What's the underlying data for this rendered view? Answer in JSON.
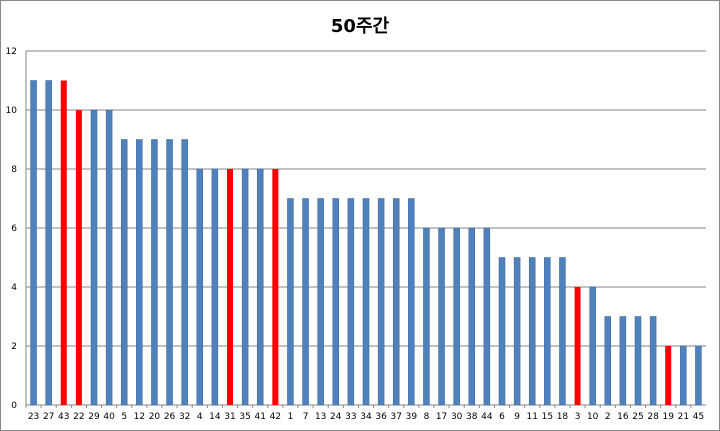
{
  "chart_data": {
    "type": "bar",
    "title": "50주간",
    "xlabel": "",
    "ylabel": "",
    "ylim": [
      0,
      12
    ],
    "yticks": [
      0,
      2,
      4,
      6,
      8,
      10,
      12
    ],
    "grid": true,
    "categories": [
      "23",
      "27",
      "43",
      "22",
      "29",
      "40",
      "5",
      "12",
      "20",
      "26",
      "32",
      "4",
      "14",
      "31",
      "35",
      "41",
      "42",
      "1",
      "7",
      "13",
      "24",
      "33",
      "34",
      "36",
      "37",
      "39",
      "8",
      "17",
      "30",
      "38",
      "44",
      "6",
      "9",
      "11",
      "15",
      "18",
      "3",
      "10",
      "2",
      "16",
      "25",
      "28",
      "19",
      "21",
      "45"
    ],
    "values": [
      11,
      11,
      11,
      10,
      10,
      10,
      9,
      9,
      9,
      9,
      9,
      8,
      8,
      8,
      8,
      8,
      8,
      7,
      7,
      7,
      7,
      7,
      7,
      7,
      7,
      7,
      6,
      6,
      6,
      6,
      6,
      5,
      5,
      5,
      5,
      5,
      4,
      4,
      3,
      3,
      3,
      3,
      2,
      2,
      2
    ],
    "highlighted": [
      "43",
      "22",
      "31",
      "42",
      "3",
      "19"
    ],
    "colors": {
      "default": "#4f81bd",
      "highlight": "#ff0000",
      "default_border": "#3a6596",
      "grid": "#868686"
    }
  }
}
